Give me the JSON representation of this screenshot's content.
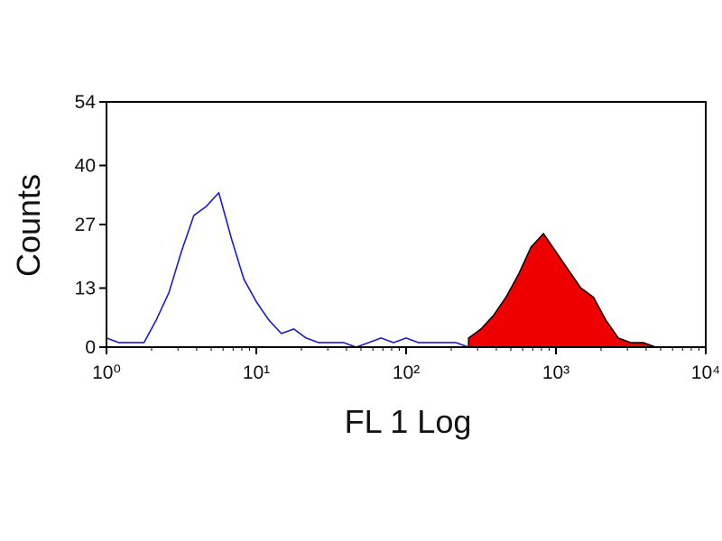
{
  "chart_data": {
    "type": "histogram-overlay",
    "x_label": "FL 1 Log",
    "y_label": "Counts",
    "log_x": true,
    "xlim": [
      1,
      10000
    ],
    "xticks": [
      {
        "value": 1,
        "label": "10⁰"
      },
      {
        "value": 10,
        "label": "10¹"
      },
      {
        "value": 100,
        "label": "10²"
      },
      {
        "value": 1000,
        "label": "10³"
      },
      {
        "value": 10000,
        "label": "10⁴"
      }
    ],
    "ylim": [
      0,
      54
    ],
    "yticks": [
      0,
      13,
      27,
      40,
      54
    ],
    "x": [
      1,
      1.21,
      1.47,
      1.78,
      2.15,
      2.61,
      3.16,
      3.83,
      4.64,
      5.62,
      6.81,
      8.25,
      10,
      12.1,
      14.7,
      17.8,
      21.5,
      26.1,
      31.6,
      38.3,
      46.4,
      56.2,
      68.1,
      82.5,
      100,
      121,
      147,
      178,
      215,
      261,
      316,
      383,
      464,
      562,
      681,
      825,
      1000,
      1210,
      1470,
      1780,
      2150,
      2610,
      3160,
      3830,
      4640
    ],
    "series": [
      {
        "color": "#1a1ad0",
        "filled": false,
        "values": [
          2,
          1,
          1,
          1,
          6,
          12,
          21,
          29,
          31,
          34,
          24,
          15,
          10,
          6,
          3,
          4,
          2,
          1,
          1,
          1,
          0,
          1,
          2,
          1,
          2,
          1,
          1,
          1,
          1,
          0,
          null,
          null,
          null,
          null,
          null,
          null,
          null,
          null,
          null,
          null,
          null,
          null,
          null,
          null,
          null
        ]
      },
      {
        "color": "#ee0000",
        "edge_color": "#000000",
        "filled": true,
        "values": [
          null,
          null,
          null,
          null,
          null,
          null,
          null,
          null,
          null,
          null,
          null,
          null,
          null,
          null,
          null,
          null,
          null,
          null,
          null,
          null,
          null,
          null,
          null,
          null,
          null,
          null,
          null,
          null,
          null,
          2,
          4,
          7,
          11,
          16,
          22,
          25,
          21,
          17,
          13,
          11,
          6,
          2,
          1,
          1,
          0
        ]
      }
    ]
  }
}
